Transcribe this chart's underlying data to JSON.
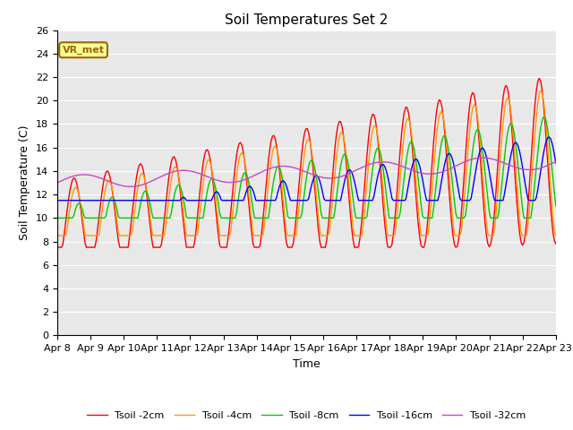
{
  "title": "Soil Temperatures Set 2",
  "xlabel": "Time",
  "ylabel": "Soil Temperature (C)",
  "ylim": [
    0,
    26
  ],
  "colors": {
    "tsoil_2cm": "#ff0000",
    "tsoil_4cm": "#ff9900",
    "tsoil_8cm": "#00cc00",
    "tsoil_16cm": "#0000ff",
    "tsoil_32cm": "#cc44cc"
  },
  "legend_labels": [
    "Tsoil -2cm",
    "Tsoil -4cm",
    "Tsoil -8cm",
    "Tsoil -16cm",
    "Tsoil -32cm"
  ],
  "annotation_text": "VR_met",
  "annotation_box_color": "#ffff99",
  "annotation_border_color": "#996600",
  "plot_bg_color": "#e8e8e8",
  "fig_bg_color": "#ffffff",
  "x_tick_labels": [
    "Apr 8",
    "Apr 9",
    "Apr 10",
    "Apr 11",
    "Apr 12",
    "Apr 13",
    "Apr 14",
    "Apr 15",
    "Apr 16",
    "Apr 17",
    "Apr 18",
    "Apr 19",
    "Apr 20",
    "Apr 21",
    "Apr 22",
    "Apr 23"
  ],
  "title_fontsize": 11,
  "axis_fontsize": 9,
  "tick_fontsize": 8,
  "legend_fontsize": 8
}
